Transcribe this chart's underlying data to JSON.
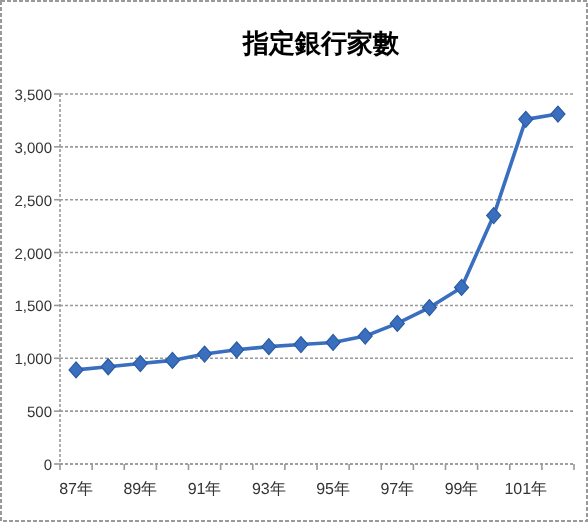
{
  "chart_data": {
    "type": "line",
    "title": "指定銀行家數",
    "categories": [
      "87年",
      null,
      "89年",
      null,
      "91年",
      null,
      "93年",
      null,
      "95年",
      null,
      "97年",
      null,
      "99年",
      null,
      "101年",
      null
    ],
    "series": [
      {
        "color": "#3a6fc0",
        "values": [
          890,
          920,
          950,
          980,
          1040,
          1080,
          1110,
          1130,
          1150,
          1210,
          1330,
          1480,
          1670,
          2350,
          3260,
          3310
        ]
      }
    ],
    "ylim": [
      0,
      3500
    ],
    "yticks": [
      0,
      500,
      {
        "value": 1000,
        "label": "1,000"
      },
      {
        "value": 1500,
        "label": "1,500"
      },
      {
        "value": 2000,
        "label": "2,000"
      },
      {
        "value": 2500,
        "label": "2,500"
      },
      {
        "value": 3000,
        "label": "3,000"
      },
      {
        "value": 3500,
        "label": "3,500"
      }
    ],
    "grid": "y",
    "marker": "diamond",
    "line_style": "solid"
  }
}
